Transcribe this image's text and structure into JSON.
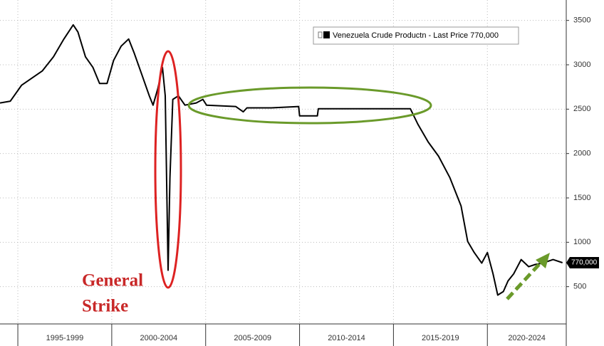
{
  "chart_data": {
    "type": "line",
    "series": [
      {
        "name": "Venezuela Crude Productn - Last Price 770,000",
        "color": "#000000",
        "x": [
          1994.05,
          1994.6,
          1995.2,
          1995.75,
          1996.3,
          1996.9,
          1997.45,
          1997.95,
          1998.2,
          1998.6,
          1999.0,
          1999.35,
          1999.75,
          2000.1,
          2000.5,
          2000.9,
          2001.2,
          2001.6,
          2002.0,
          2002.2,
          2002.45,
          2002.7,
          2002.85,
          2003.0,
          2003.1,
          2003.25,
          2003.55,
          2003.9,
          2004.5,
          2004.85,
          2005.05,
          2006.6,
          2007.0,
          2007.2,
          2008.5,
          2009.95,
          2010.0,
          2010.95,
          2011.0,
          2015.9,
          2016.3,
          2016.85,
          2017.4,
          2018.0,
          2018.6,
          2018.95,
          2019.3,
          2019.7,
          2020.0,
          2020.3,
          2020.55,
          2020.85,
          2021.1,
          2021.4,
          2021.8,
          2022.2,
          2022.55,
          2022.95,
          2023.5,
          2024.0
        ],
        "values": [
          2570,
          2590,
          2770,
          2850,
          2930,
          3090,
          3290,
          3450,
          3370,
          3090,
          2970,
          2790,
          2790,
          3050,
          3210,
          3290,
          3130,
          2890,
          2650,
          2545,
          2730,
          2970,
          2650,
          685,
          1730,
          2610,
          2650,
          2545,
          2570,
          2610,
          2545,
          2530,
          2470,
          2515,
          2515,
          2530,
          2425,
          2425,
          2505,
          2505,
          2330,
          2130,
          1970,
          1730,
          1410,
          1010,
          885,
          765,
          885,
          645,
          405,
          445,
          565,
          645,
          805,
          725,
          750,
          765,
          805,
          770
        ]
      }
    ],
    "last_label": {
      "value": 770,
      "label": "770,000"
    },
    "xlim": [
      1994.05,
      2024.2
    ],
    "xticks": [
      1995,
      2000,
      2005,
      2010,
      2015,
      2020
    ],
    "xtick_labels": [
      "1995-1999",
      "2000-2004",
      "2005-2009",
      "2010-2014",
      "2015-2019",
      "2020-2024"
    ],
    "ylim": [
      80,
      3730
    ],
    "yticks": [
      500,
      1000,
      1500,
      2000,
      2500,
      3000,
      3500
    ],
    "grid": true,
    "annotation": [
      "General",
      "Strike"
    ]
  }
}
